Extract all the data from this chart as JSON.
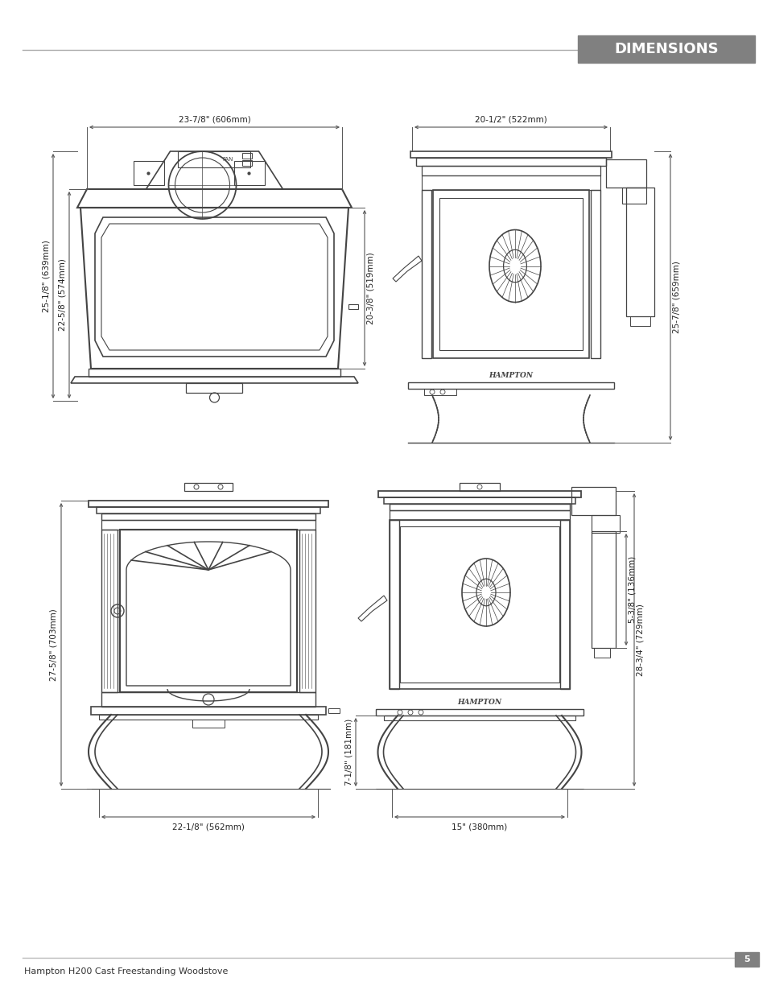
{
  "title": "DIMENSIONS",
  "title_bg": "#808080",
  "title_text_color": "#ffffff",
  "footer_text": "Hampton H200 Cast Freestanding Woodstove",
  "page_number": "5",
  "bg_color": "#ffffff",
  "line_color": "#444444",
  "dim_line_color": "#555555",
  "top_left_dims": {
    "width_label": "23-7/8\" (606mm)",
    "height1_label": "25-1/8\" (639mm)",
    "height2_label": "22-5/8\" (574mm)",
    "height3_label": "20-3/8\" (519mm)"
  },
  "top_right_dims": {
    "width_label": "20-1/2\" (522mm)",
    "height_label": "25-7/8\" (659mm)"
  },
  "bottom_left_dims": {
    "width_label": "22-1/8\" (562mm)",
    "height_label": "27-5/8\" (703mm)"
  },
  "bottom_right_dims": {
    "width_label": "15\" (380mm)",
    "height1_label": "28-3/4\" (729mm)",
    "height2_label": "7-1/8\" (181mm)",
    "height3_label": "5-3/8\" (136mm)"
  }
}
